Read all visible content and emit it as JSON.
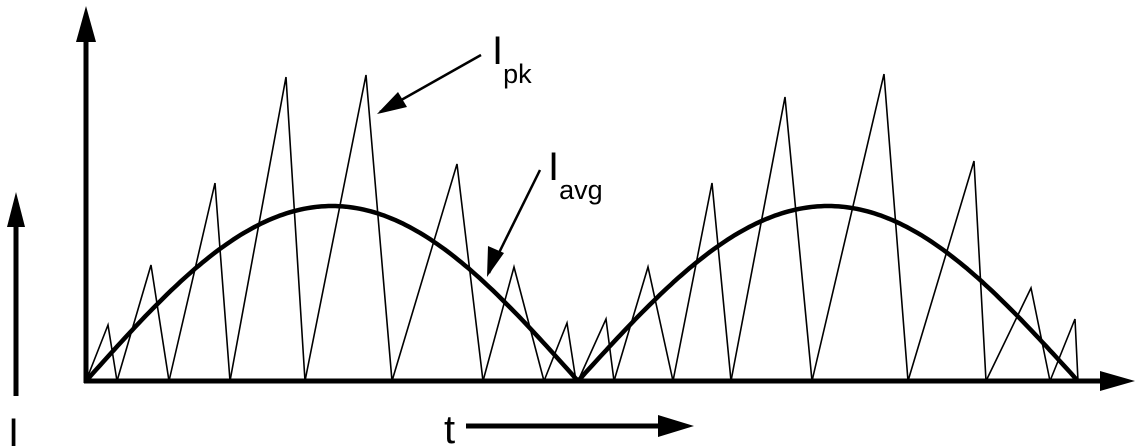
{
  "labels": {
    "peak_main": "I",
    "peak_sub": "pk",
    "avg_main": "I",
    "avg_sub": "avg",
    "y_axis": "I",
    "x_axis": "t"
  },
  "colors": {
    "stroke": "#000000",
    "background": "#ffffff"
  }
}
